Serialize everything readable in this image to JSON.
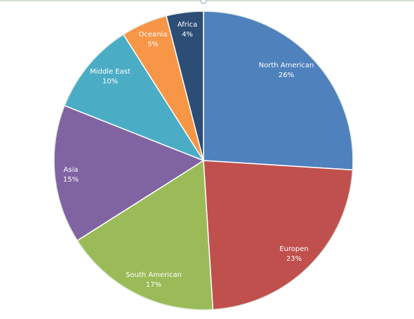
{
  "chart_data": {
    "type": "pie",
    "categories": [
      "North American",
      "Europen",
      "South American",
      "Asia",
      "Middle East",
      "Oceania",
      "Africa"
    ],
    "values": [
      26,
      23,
      17,
      15,
      10,
      5,
      4
    ],
    "value_labels": [
      "26%",
      "23%",
      "17%",
      "15%",
      "10%",
      "5%",
      "4%"
    ],
    "colors": [
      "#4f81bd",
      "#c0504d",
      "#9bbb59",
      "#8064a2",
      "#4bacc6",
      "#f79646",
      "#2c4d75"
    ],
    "start_angle": "12 o'clock",
    "direction": "clockwise",
    "slice_border_color": "#ffffff"
  },
  "chart_frame": {
    "border_color": "#c4d8c4",
    "handle_color": "#8a9bb0"
  }
}
